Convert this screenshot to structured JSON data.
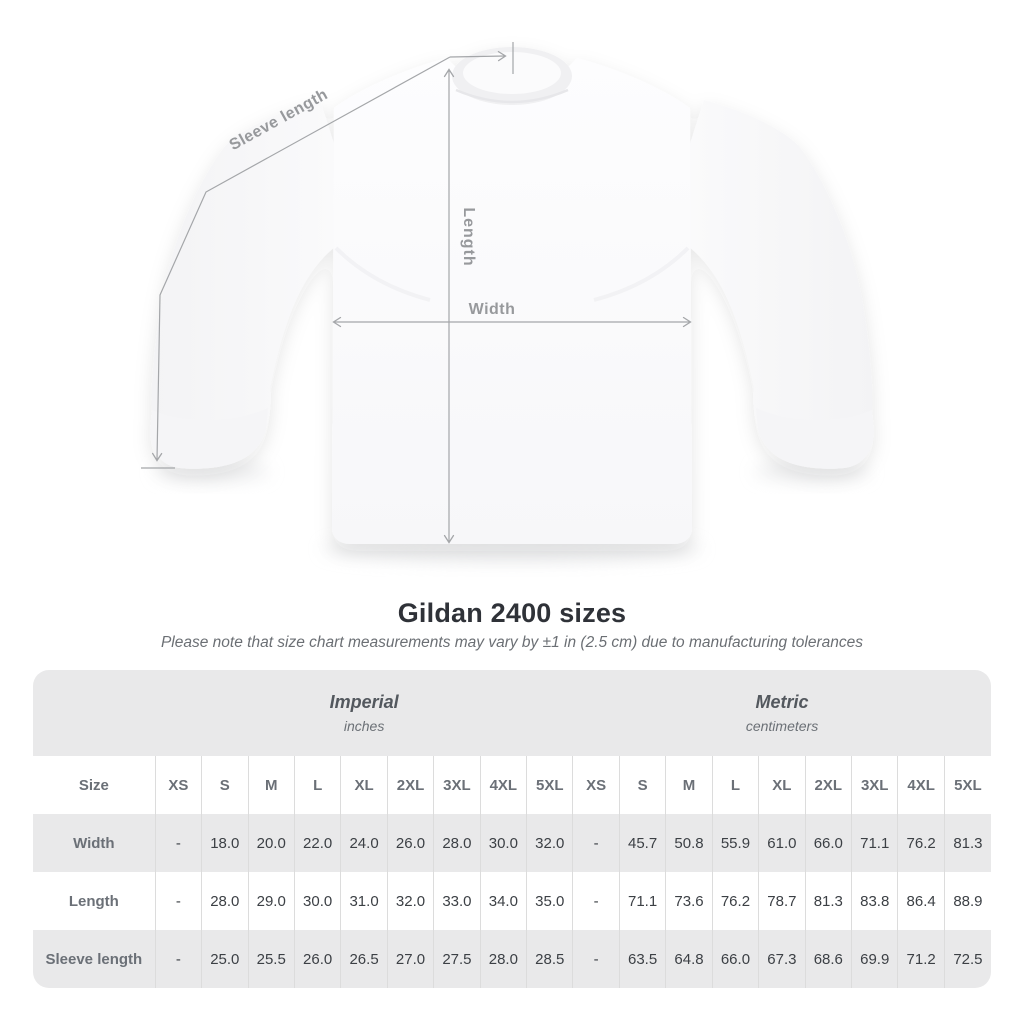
{
  "diagram": {
    "sleeve_length_label": "Sleeve length",
    "length_label": "Length",
    "width_label": "Width"
  },
  "heading": {
    "title": "Gildan 2400 sizes",
    "subtitle": "Please note that size chart measurements may vary by ±1 in (2.5 cm) due to manufacturing tolerances"
  },
  "size_table": {
    "corner_label": "Size",
    "unit_groups": [
      {
        "name": "Imperial",
        "unit": "inches"
      },
      {
        "name": "Metric",
        "unit": "centimeters"
      }
    ],
    "sizes": [
      "XS",
      "S",
      "M",
      "L",
      "XL",
      "2XL",
      "3XL",
      "4XL",
      "5XL"
    ],
    "rows": [
      {
        "key": "width",
        "label": "Width",
        "imperial": [
          "-",
          "18.0",
          "20.0",
          "22.0",
          "24.0",
          "26.0",
          "28.0",
          "30.0",
          "32.0"
        ],
        "metric": [
          "-",
          "45.7",
          "50.8",
          "55.9",
          "61.0",
          "66.0",
          "71.1",
          "76.2",
          "81.3"
        ]
      },
      {
        "key": "length",
        "label": "Length",
        "imperial": [
          "-",
          "28.0",
          "29.0",
          "30.0",
          "31.0",
          "32.0",
          "33.0",
          "34.0",
          "35.0"
        ],
        "metric": [
          "-",
          "71.1",
          "73.6",
          "76.2",
          "78.7",
          "81.3",
          "83.8",
          "86.4",
          "88.9"
        ]
      },
      {
        "key": "sleeve-length",
        "label": "Sleeve length",
        "imperial": [
          "-",
          "25.0",
          "25.5",
          "26.0",
          "26.5",
          "27.0",
          "27.5",
          "28.0",
          "28.5"
        ],
        "metric": [
          "-",
          "63.5",
          "64.8",
          "66.0",
          "67.3",
          "68.6",
          "69.9",
          "71.2",
          "72.5"
        ]
      }
    ]
  },
  "colors": {
    "row_stripe": "#e9e9ea",
    "band": "#e9e9ea",
    "grid_line": "#dcdcdc",
    "header_text": "#6b7077",
    "data_text": "#3c4045",
    "title_text": "#2f3238",
    "measure_line": "#a4a6a9",
    "measure_label": "#97999c"
  },
  "chart_data": {
    "type": "table",
    "title": "Gildan 2400 sizes",
    "columns": [
      "Size",
      "XS",
      "S",
      "M",
      "L",
      "XL",
      "2XL",
      "3XL",
      "4XL",
      "5XL"
    ],
    "unit_sections": [
      "Imperial (inches)",
      "Metric (centimeters)"
    ],
    "rows_imperial": [
      [
        "Width",
        "-",
        18.0,
        20.0,
        22.0,
        24.0,
        26.0,
        28.0,
        30.0,
        32.0
      ],
      [
        "Length",
        "-",
        28.0,
        29.0,
        30.0,
        31.0,
        32.0,
        33.0,
        34.0,
        35.0
      ],
      [
        "Sleeve length",
        "-",
        25.0,
        25.5,
        26.0,
        26.5,
        27.0,
        27.5,
        28.0,
        28.5
      ]
    ],
    "rows_metric": [
      [
        "Width",
        "-",
        45.7,
        50.8,
        55.9,
        61.0,
        66.0,
        71.1,
        76.2,
        81.3
      ],
      [
        "Length",
        "-",
        71.1,
        73.6,
        76.2,
        78.7,
        81.3,
        83.8,
        86.4,
        88.9
      ],
      [
        "Sleeve length",
        "-",
        63.5,
        64.8,
        66.0,
        67.3,
        68.6,
        69.9,
        71.2,
        72.5
      ]
    ]
  }
}
